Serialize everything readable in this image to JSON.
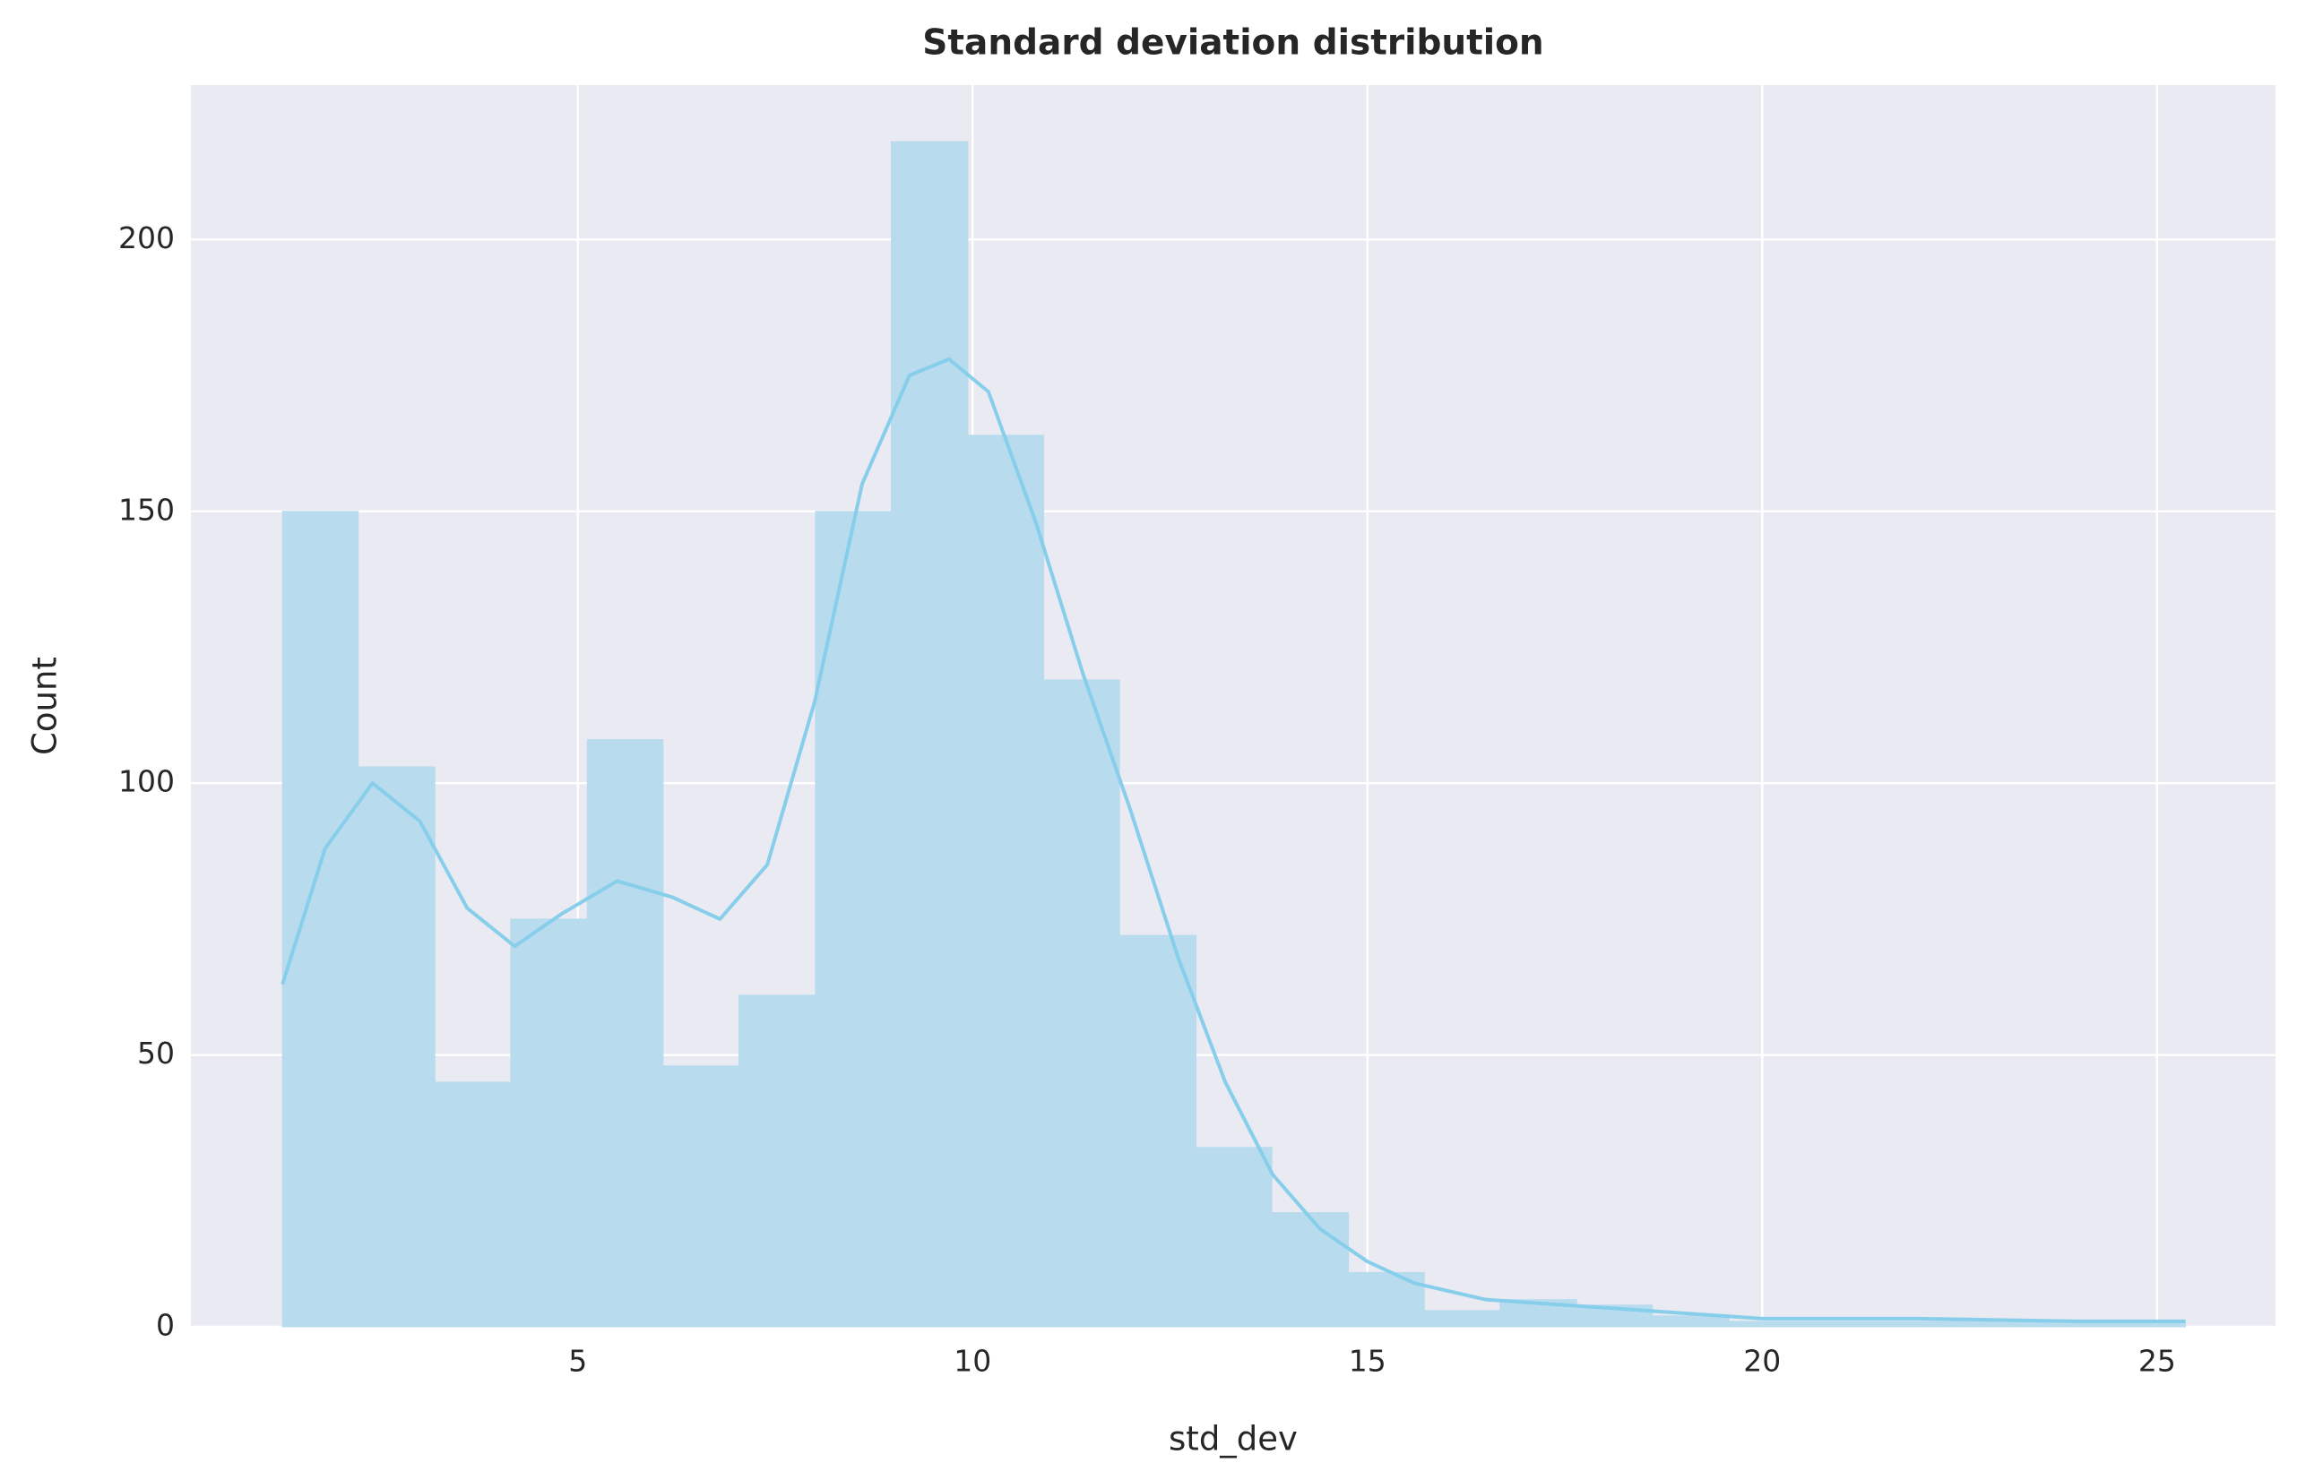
{
  "chart_data": {
    "type": "histogram",
    "title": "Standard deviation distribution",
    "xlabel": "std_dev",
    "ylabel": "Count",
    "bins": [
      1.26,
      2.22,
      3.19,
      4.15,
      5.12,
      6.08,
      7.04,
      8.01,
      8.97,
      9.94,
      10.9,
      11.86,
      12.83,
      13.79,
      14.76,
      15.72,
      16.68,
      17.65,
      18.61,
      19.58,
      20.54,
      21.5,
      22.47,
      23.43,
      24.4,
      25.36
    ],
    "counts": [
      150,
      103,
      45,
      75,
      108,
      48,
      61,
      150,
      218,
      164,
      119,
      72,
      33,
      21,
      10,
      3,
      5,
      4,
      2,
      1,
      1,
      1,
      1,
      1,
      1
    ],
    "color": "#b8dbee",
    "kde": {
      "color": "#87ceeb",
      "x": [
        1.26,
        1.8,
        2.4,
        3.0,
        3.6,
        4.2,
        4.8,
        5.5,
        6.2,
        6.8,
        7.4,
        8.0,
        8.6,
        9.2,
        9.7,
        10.2,
        10.8,
        11.4,
        12.0,
        12.6,
        13.2,
        13.8,
        14.4,
        15.0,
        15.6,
        16.5,
        17.5,
        18.5,
        20.0,
        22.0,
        24.0,
        25.36
      ],
      "values": [
        63,
        88,
        100,
        93,
        77,
        70,
        76,
        82,
        79,
        75,
        85,
        115,
        155,
        175,
        178,
        172,
        148,
        120,
        95,
        68,
        45,
        28,
        18,
        12,
        8,
        5,
        4,
        3,
        1.5,
        1.5,
        1,
        1
      ]
    },
    "xlim": [
      0.1,
      26.5
    ],
    "ylim": [
      0,
      228.4
    ],
    "xticks": [
      5,
      10,
      15,
      20,
      25
    ],
    "yticks": [
      0,
      50,
      100,
      150,
      200
    ],
    "grid": true
  }
}
